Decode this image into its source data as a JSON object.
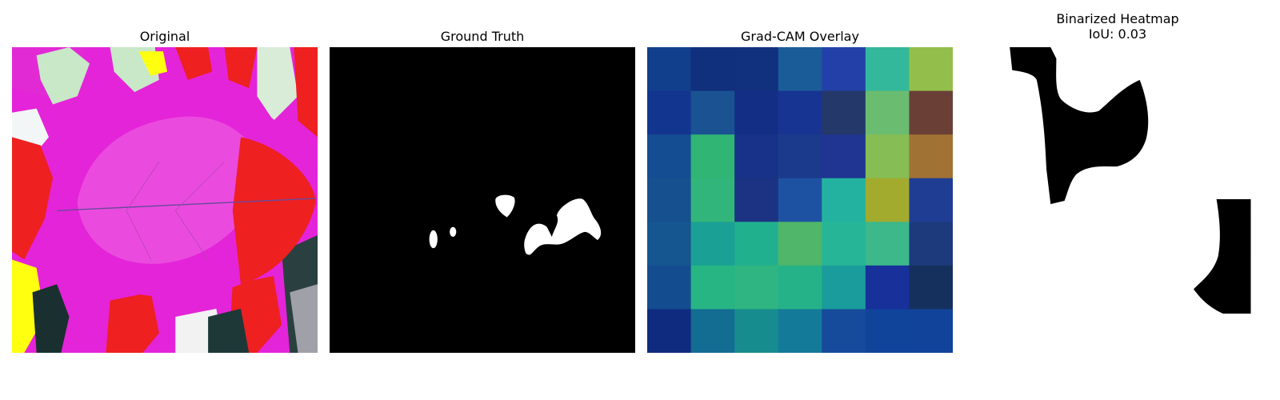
{
  "panels": [
    {
      "title": "Original"
    },
    {
      "title": "Ground Truth"
    },
    {
      "title": "Grad-CAM Overlay"
    },
    {
      "title": "Binarized Heatmap",
      "subtitle": "IoU: 0.03"
    }
  ],
  "gradcam_cells": [
    [
      "#123f8c",
      "#102f7d",
      "#11307e",
      "#1a5c98",
      "#2340a8",
      "#33b89c",
      "#94be4c"
    ],
    [
      "#12358f",
      "#1a5292",
      "#132f85",
      "#183492",
      "#24386a",
      "#6abc70",
      "#6a4036"
    ],
    [
      "#154d92",
      "#30b574",
      "#173288",
      "#1c3a8c",
      "#1f3591",
      "#86bd54",
      "#a07234"
    ],
    [
      "#16508f",
      "#32b57a",
      "#1c3282",
      "#1d52a2",
      "#24b2a0",
      "#a2ab2e",
      "#203d94"
    ],
    [
      "#155590",
      "#1ba096",
      "#21b08e",
      "#4fb66a",
      "#26b596",
      "#3cb88a",
      "#1c3a7c"
    ],
    [
      "#144c90",
      "#27b584",
      "#2fb582",
      "#26b288",
      "#1b9c9c",
      "#17309a",
      "#16305e"
    ],
    [
      "#0f2b80",
      "#136c92",
      "#168c8e",
      "#147a9a",
      "#154b9a",
      "#10439a",
      "#12439a"
    ]
  ],
  "colors": {
    "ground_truth_bg": "#000000",
    "ground_truth_fg": "#ffffff",
    "binarized_fg": "#000000",
    "leaf": "#e424d8",
    "leaf_light": "#f06ae6",
    "red_patch": "#ee2020",
    "yellow_patch": "#ffff10",
    "pale_patch": "#c8e8c8",
    "dark_patch": "#1a3030"
  }
}
